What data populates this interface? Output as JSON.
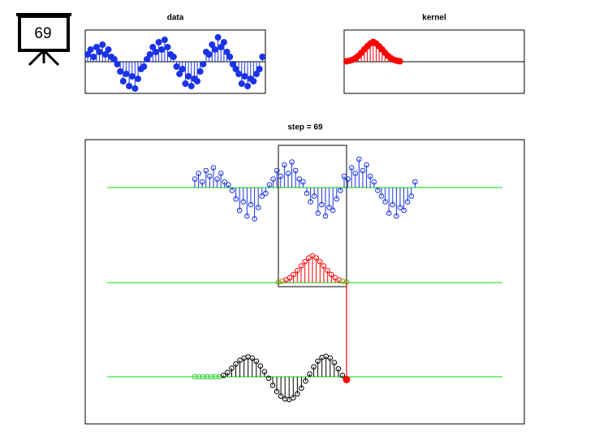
{
  "badge": "69",
  "chart_data": [
    {
      "type": "stem",
      "title": "data",
      "color": "#1a33e6",
      "ylim": [
        -1.3,
        1.3
      ],
      "values": [
        0.3,
        0.5,
        0.2,
        0.6,
        0.4,
        0.7,
        0.3,
        0.5,
        0.2,
        0.1,
        -0.1,
        -0.4,
        -0.8,
        -0.5,
        -1.0,
        -0.6,
        -1.1,
        -0.7,
        -0.3,
        -0.2,
        0.1,
        0.3,
        0.6,
        0.4,
        0.8,
        0.5,
        0.9,
        0.6,
        0.3,
        0.2,
        -0.2,
        -0.5,
        -0.3,
        -0.9,
        -0.6,
        -1.0,
        -0.7,
        -0.8,
        -0.4,
        -0.1,
        0.4,
        0.3,
        0.7,
        0.5,
        1.0,
        0.6,
        0.8,
        0.4,
        0.2,
        -0.1,
        -0.3,
        -0.5,
        -0.9,
        -0.6,
        -1.0,
        -0.7,
        -0.8,
        -0.5,
        -0.3,
        0.2
      ]
    },
    {
      "type": "stem",
      "title": "kernel",
      "color": "#ff0000",
      "ylim": [
        -1.6,
        1.6
      ],
      "values": [
        0.02,
        0.05,
        0.1,
        0.18,
        0.3,
        0.45,
        0.62,
        0.78,
        0.92,
        1.0,
        0.92,
        0.78,
        0.62,
        0.45,
        0.3,
        0.18,
        0.1,
        0.05,
        0.02
      ]
    },
    {
      "type": "convolution",
      "title": "step = 69",
      "color": "#000000",
      "values": [
        0,
        0,
        0,
        0,
        0,
        0,
        0,
        0.05,
        0.15,
        0.3,
        0.45,
        0.58,
        0.66,
        0.7,
        0.66,
        0.55,
        0.38,
        0.18,
        -0.05,
        -0.3,
        -0.52,
        -0.68,
        -0.78,
        -0.8,
        -0.74,
        -0.6,
        -0.4,
        -0.15,
        0.1,
        0.35,
        0.55,
        0.68,
        0.72,
        0.66,
        0.5,
        0.28,
        0.05,
        -0.1
      ]
    }
  ]
}
